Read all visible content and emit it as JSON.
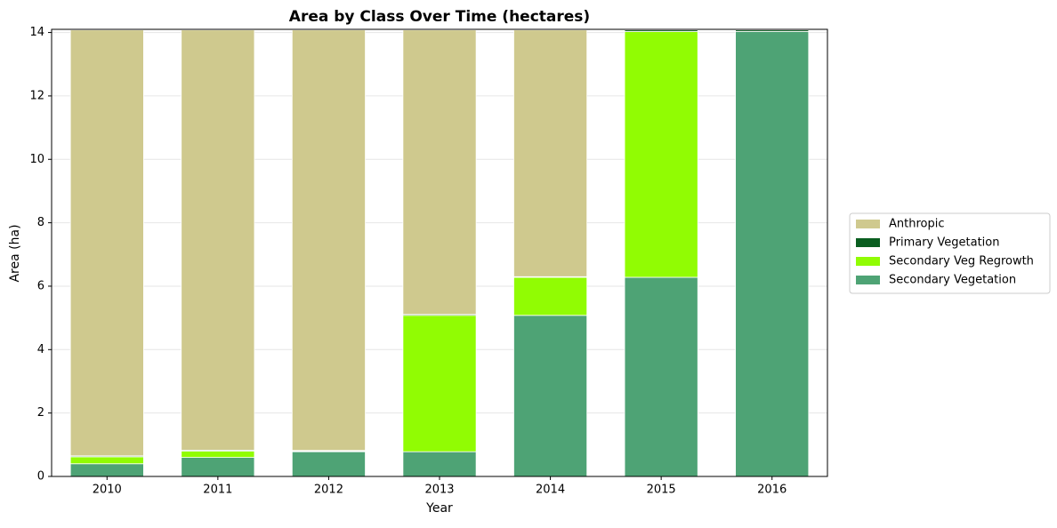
{
  "chart_data": {
    "type": "stacked_bar",
    "title": "Area by Class Over Time (hectares)",
    "x_label": "Year",
    "y_label": "Area (ha)",
    "categories": [
      "2010",
      "2011",
      "2012",
      "2013",
      "2014",
      "2015",
      "2016"
    ],
    "series": [
      {
        "name": "Secondary Vegetation",
        "color": "#4ea375",
        "values": [
          0.4,
          0.6,
          0.78,
          0.78,
          5.08,
          6.28,
          14.03
        ]
      },
      {
        "name": "Secondary Veg Regrowth",
        "color": "#91fc03",
        "values": [
          0.22,
          0.2,
          0.02,
          4.3,
          1.2,
          7.75,
          0
        ]
      },
      {
        "name": "Primary Vegetation",
        "color": "#0a5e20",
        "values": [
          0.03,
          0.03,
          0.02,
          0.03,
          0.02,
          0.05,
          0.05
        ]
      },
      {
        "name": "Anthropic",
        "color": "#cfc98e",
        "values": [
          13.43,
          13.25,
          13.26,
          8.97,
          7.78,
          0,
          0
        ]
      }
    ],
    "ylim": [
      0,
      14.1
    ],
    "yticks": [
      0,
      2,
      4,
      6,
      8,
      10,
      12,
      14
    ],
    "grid": true,
    "legend": "right"
  }
}
